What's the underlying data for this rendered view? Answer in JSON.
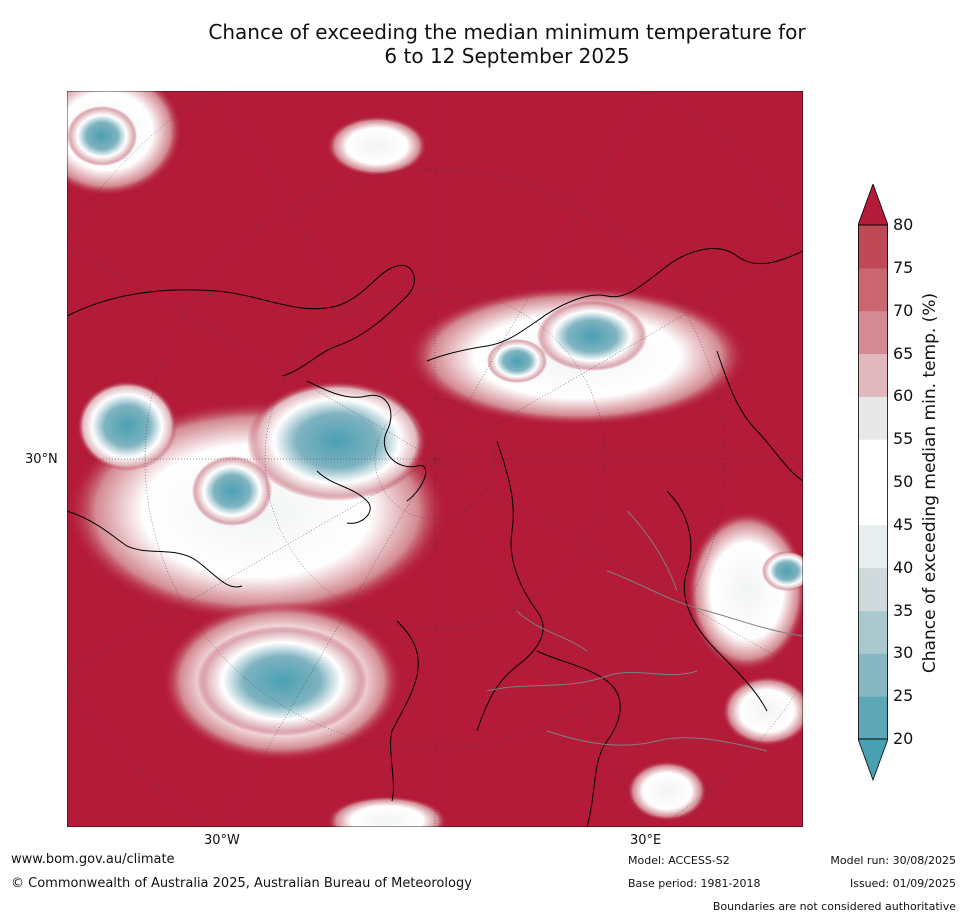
{
  "title": {
    "line1": "Chance of exceeding the median minimum temperature for",
    "line2": "6 to 12 September 2025"
  },
  "map": {
    "projection": "north polar stereographic",
    "lat_label": "30°N",
    "lon_labels": [
      "30°W",
      "30°E"
    ],
    "colors": {
      "very_high": "#b31b39",
      "high": "#c9606c",
      "neutral": "#ffffff",
      "low": "#7fb3c0",
      "very_low": "#4aa0b3",
      "coast": "#000000",
      "border": "#7f7f7f"
    }
  },
  "colorbar": {
    "title": "Chance of exceeding median min. temp. (%)",
    "ticks": [
      "20",
      "25",
      "30",
      "35",
      "40",
      "45",
      "50",
      "55",
      "60",
      "65",
      "70",
      "75",
      "80"
    ],
    "colors": [
      "#5ea7b6",
      "#86b7c2",
      "#a9c9cf",
      "#d0d9db",
      "#e8edef",
      "#ffffff",
      "#ffffff",
      "#e8e8e8",
      "#e0b8bd",
      "#d38a92",
      "#c96670",
      "#be4a57",
      "#b31b39"
    ],
    "extend_low_color": "#4aa0b3",
    "extend_high_color": "#b31b39"
  },
  "footer": {
    "website": "www.bom.gov.au/climate",
    "copyright": "© Commonwealth of Australia 2025, Australian Bureau of Meteorology",
    "model": "Model: ACCESS-S2",
    "base_period": "Base period: 1981-2018",
    "model_run": "Model run: 30/08/2025",
    "issued": "Issued: 01/09/2025",
    "disclaimer": "Boundaries are not considered authoritative"
  }
}
